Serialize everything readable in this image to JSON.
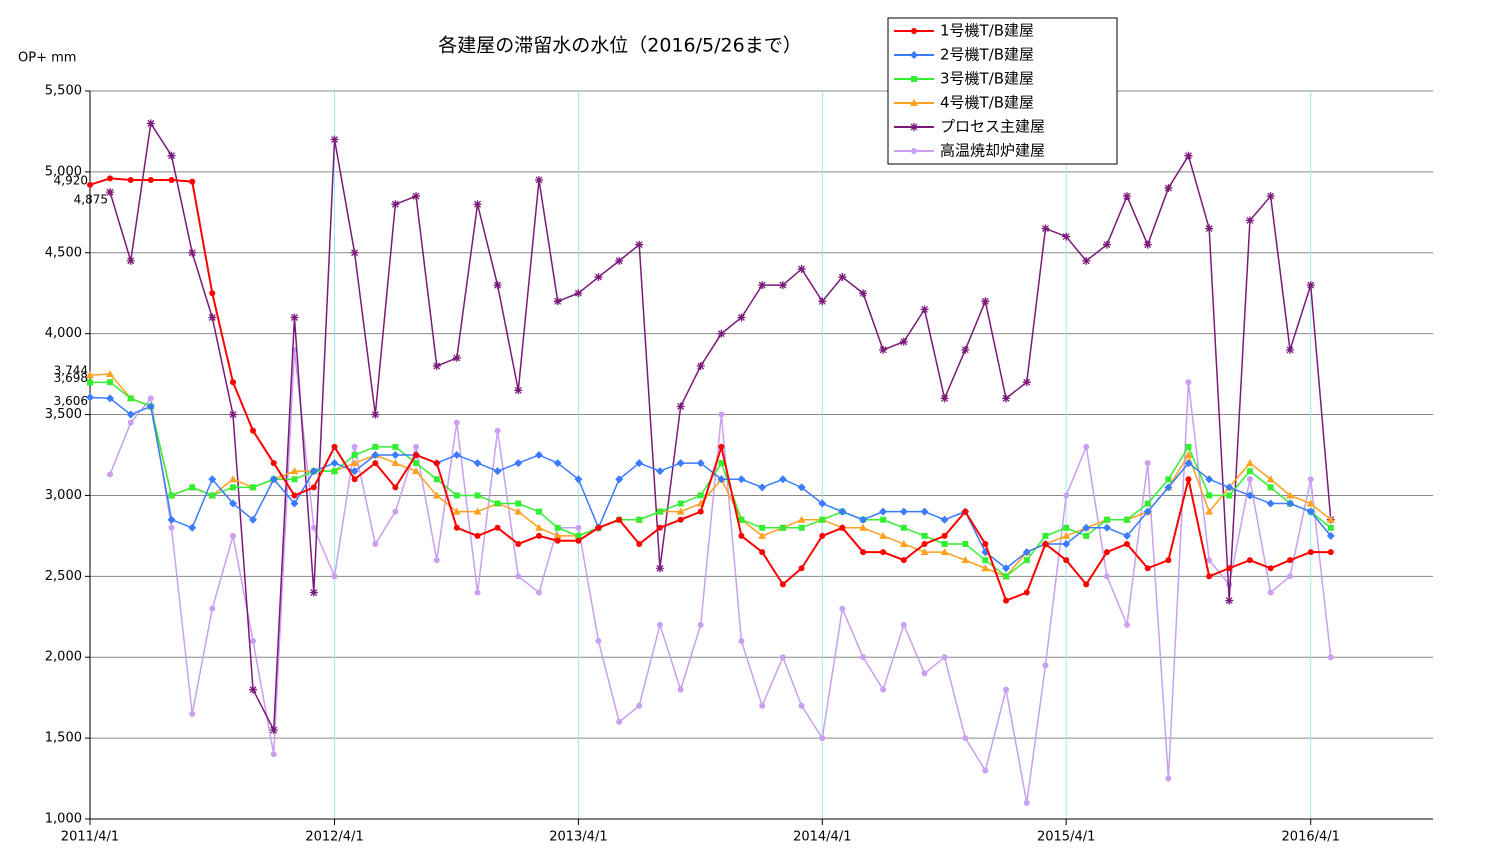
{
  "chart_data": {
    "type": "line",
    "title": "各建屋の滞留水の水位（2016/5/26まで）",
    "y_label": "OP+ mm",
    "x": [
      "2011/4/1",
      "2011/5/1",
      "2011/6/1",
      "2011/7/1",
      "2011/8/1",
      "2011/9/1",
      "2011/10/1",
      "2011/11/1",
      "2011/12/1",
      "2012/1/1",
      "2012/2/1",
      "2012/3/1",
      "2012/4/1",
      "2012/5/1",
      "2012/6/1",
      "2012/7/1",
      "2012/8/1",
      "2012/9/1",
      "2012/10/1",
      "2012/11/1",
      "2012/12/1",
      "2013/1/1",
      "2013/2/1",
      "2013/3/1",
      "2013/4/1",
      "2013/5/1",
      "2013/6/1",
      "2013/7/1",
      "2013/8/1",
      "2013/9/1",
      "2013/10/1",
      "2013/11/1",
      "2013/12/1",
      "2014/1/1",
      "2014/2/1",
      "2014/3/1",
      "2014/4/1",
      "2014/5/1",
      "2014/6/1",
      "2014/7/1",
      "2014/8/1",
      "2014/9/1",
      "2014/10/1",
      "2014/11/1",
      "2014/12/1",
      "2015/1/1",
      "2015/2/1",
      "2015/3/1",
      "2015/4/1",
      "2015/5/1",
      "2015/6/1",
      "2015/7/1",
      "2015/8/1",
      "2015/9/1",
      "2015/10/1",
      "2015/11/1",
      "2015/12/1",
      "2016/1/1",
      "2016/2/1",
      "2016/3/1",
      "2016/4/1",
      "2016/5/1"
    ],
    "xlim": [
      "2011/4/1",
      "2016/10/1"
    ],
    "xticks": [
      "2011/4/1",
      "2012/4/1",
      "2013/4/1",
      "2014/4/1",
      "2015/4/1",
      "2016/4/1"
    ],
    "ylim": [
      1000,
      5500
    ],
    "yticks": [
      {
        "value": 1000,
        "label": "1,000"
      },
      {
        "value": 1500,
        "label": "1,500"
      },
      {
        "value": 2000,
        "label": "2,000"
      },
      {
        "value": 2500,
        "label": "2,500"
      },
      {
        "value": 3000,
        "label": "3,000"
      },
      {
        "value": 3500,
        "label": "3,500"
      },
      {
        "value": 4000,
        "label": "4,000"
      },
      {
        "value": 4500,
        "label": "4,500"
      },
      {
        "value": 5000,
        "label": "5,000"
      },
      {
        "value": 5500,
        "label": "5,500"
      }
    ],
    "grid": true,
    "legend": "top-right",
    "series": [
      {
        "name": "1号機T/B建屋",
        "color": "#ff0000",
        "marker": "circle",
        "value_labels": {
          "0": "4,920"
        },
        "values": [
          4920,
          4960,
          4950,
          4950,
          4950,
          4940,
          4250,
          3700,
          3400,
          3200,
          3000,
          3050,
          3300,
          3100,
          3200,
          3050,
          3250,
          3200,
          2800,
          2750,
          2800,
          2700,
          2750,
          2720,
          2720,
          2800,
          2850,
          2700,
          2800,
          2850,
          2900,
          3300,
          2750,
          2650,
          2450,
          2550,
          2750,
          2800,
          2650,
          2650,
          2600,
          2700,
          2750,
          2900,
          2700,
          2350,
          2400,
          2700,
          2600,
          2450,
          2650,
          2700,
          2550,
          2600,
          3100,
          2500,
          2550,
          2600,
          2550,
          2600,
          2650,
          2650
        ]
      },
      {
        "name": "2号機T/B建屋",
        "color": "#3a7bff",
        "marker": "diamond",
        "value_labels": {
          "0": "3,606"
        },
        "values": [
          3606,
          3600,
          3500,
          3550,
          2850,
          2800,
          3100,
          2950,
          2850,
          3100,
          2950,
          3150,
          3200,
          3150,
          3250,
          3250,
          3250,
          3200,
          3250,
          3200,
          3150,
          3200,
          3250,
          3200,
          3100,
          2800,
          3100,
          3200,
          3150,
          3200,
          3200,
          3100,
          3100,
          3050,
          3100,
          3050,
          2950,
          2900,
          2850,
          2900,
          2900,
          2900,
          2850,
          2900,
          2650,
          2550,
          2650,
          2700,
          2700,
          2800,
          2800,
          2750,
          2900,
          3050,
          3200,
          3100,
          3050,
          3000,
          2950,
          2950,
          2900,
          2750
        ]
      },
      {
        "name": "3号機T/B建屋",
        "color": "#33ee33",
        "marker": "square",
        "value_labels": {
          "0": "3,698"
        },
        "values": [
          3698,
          3700,
          3600,
          3550,
          3000,
          3050,
          3000,
          3050,
          3050,
          3100,
          3100,
          3150,
          3150,
          3250,
          3300,
          3300,
          3200,
          3100,
          3000,
          3000,
          2950,
          2950,
          2900,
          2800,
          2750,
          2800,
          2850,
          2850,
          2900,
          2950,
          3000,
          3200,
          2850,
          2800,
          2800,
          2800,
          2850,
          2900,
          2850,
          2850,
          2800,
          2750,
          2700,
          2700,
          2600,
          2500,
          2600,
          2750,
          2800,
          2750,
          2850,
          2850,
          2950,
          3100,
          3300,
          3000,
          3000,
          3150,
          3050,
          2950,
          2900,
          2800
        ]
      },
      {
        "name": "4号機T/B建屋",
        "color": "#ffa020",
        "marker": "triangle",
        "value_labels": {
          "0": "3,744"
        },
        "values": [
          3744,
          3750,
          3600,
          3550,
          3000,
          3050,
          3000,
          3100,
          3050,
          3100,
          3150,
          3150,
          3150,
          3200,
          3250,
          3200,
          3150,
          3000,
          2900,
          2900,
          2950,
          2900,
          2800,
          2750,
          2750,
          2800,
          2850,
          2850,
          2900,
          2900,
          2950,
          3100,
          2850,
          2750,
          2800,
          2850,
          2850,
          2800,
          2800,
          2750,
          2700,
          2650,
          2650,
          2600,
          2550,
          2500,
          2650,
          2700,
          2750,
          2800,
          2850,
          2850,
          2900,
          3050,
          3250,
          2900,
          3050,
          3200,
          3100,
          3000,
          2950,
          2850
        ]
      },
      {
        "name": "プロセス主建屋",
        "color": "#7a1a7a",
        "marker": "star",
        "value_labels": {
          "1": "4,875"
        },
        "values": [
          null,
          4875,
          4450,
          5300,
          5100,
          4500,
          4100,
          3500,
          1800,
          1550,
          4100,
          2400,
          5200,
          4500,
          3500,
          4800,
          4850,
          3800,
          3850,
          4800,
          4300,
          3650,
          4950,
          4200,
          4250,
          4350,
          4450,
          4550,
          2550,
          3550,
          3800,
          4000,
          4100,
          4300,
          4300,
          4400,
          4200,
          4350,
          4250,
          3900,
          3950,
          4150,
          3600,
          3900,
          4200,
          3600,
          3700,
          4650,
          4600,
          4450,
          4550,
          4850,
          4550,
          4900,
          5100,
          4650,
          2350,
          4700,
          4850,
          3900,
          4300,
          2850
        ]
      },
      {
        "name": "高温焼却炉建屋",
        "color": "#c9a0f0",
        "marker": "circle",
        "values": [
          null,
          3130,
          3450,
          3600,
          2800,
          1650,
          2300,
          2750,
          2100,
          1400,
          3900,
          2800,
          2500,
          3300,
          2700,
          2900,
          3300,
          2600,
          3450,
          2400,
          3400,
          2500,
          2400,
          2800,
          2800,
          2100,
          1600,
          1700,
          2200,
          1800,
          2200,
          3500,
          2100,
          1700,
          2000,
          1700,
          1500,
          2300,
          2000,
          1800,
          2200,
          1900,
          2000,
          1500,
          1300,
          1800,
          1100,
          1950,
          3000,
          3300,
          2500,
          2200,
          3200,
          1250,
          3700,
          2600,
          2450,
          3100,
          2400,
          2500,
          3100,
          2000
        ]
      }
    ]
  }
}
